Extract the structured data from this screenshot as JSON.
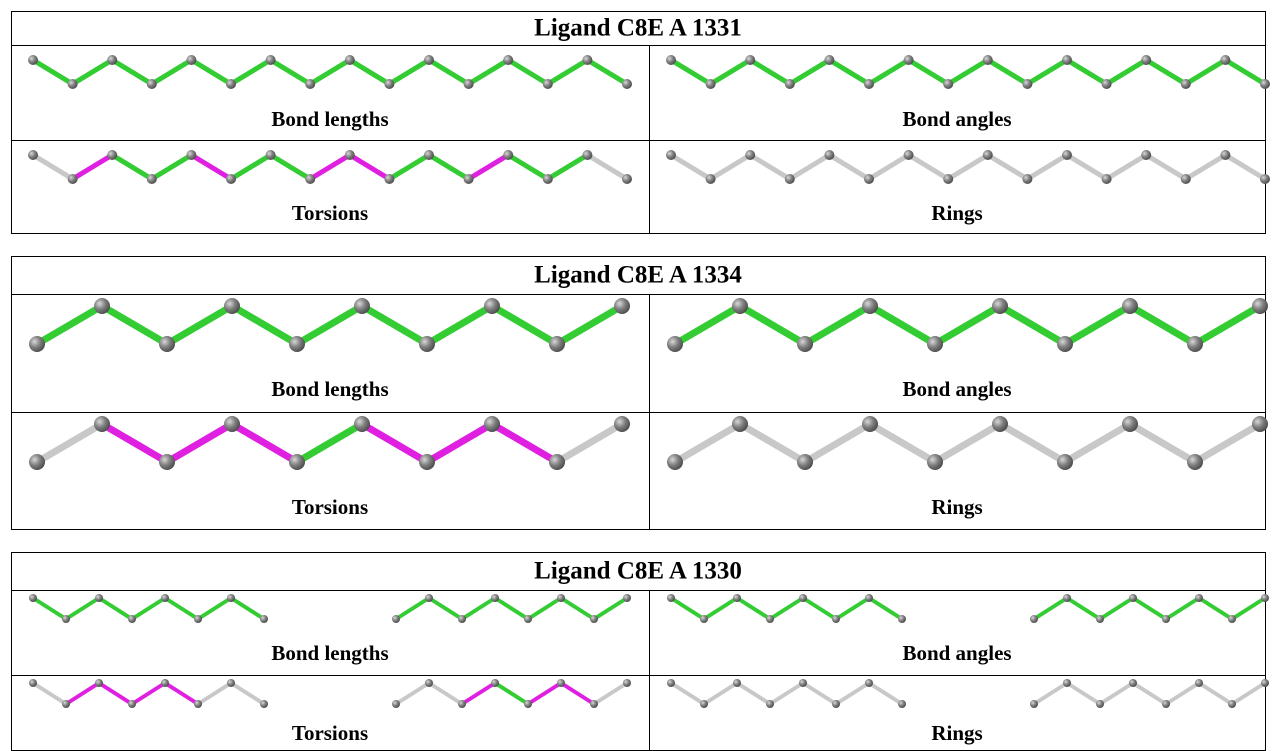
{
  "panels": [
    {
      "title": "Ligand C8E A 1331",
      "cells": [
        "Bond lengths",
        "Bond angles",
        "Torsions",
        "Rings"
      ]
    },
    {
      "title": "Ligand C8E A 1334",
      "cells": [
        "Bond lengths",
        "Bond angles",
        "Torsions",
        "Rings"
      ]
    },
    {
      "title": "Ligand C8E A 1330",
      "cells": [
        "Bond lengths",
        "Bond angles",
        "Torsions",
        "Rings"
      ]
    }
  ]
}
